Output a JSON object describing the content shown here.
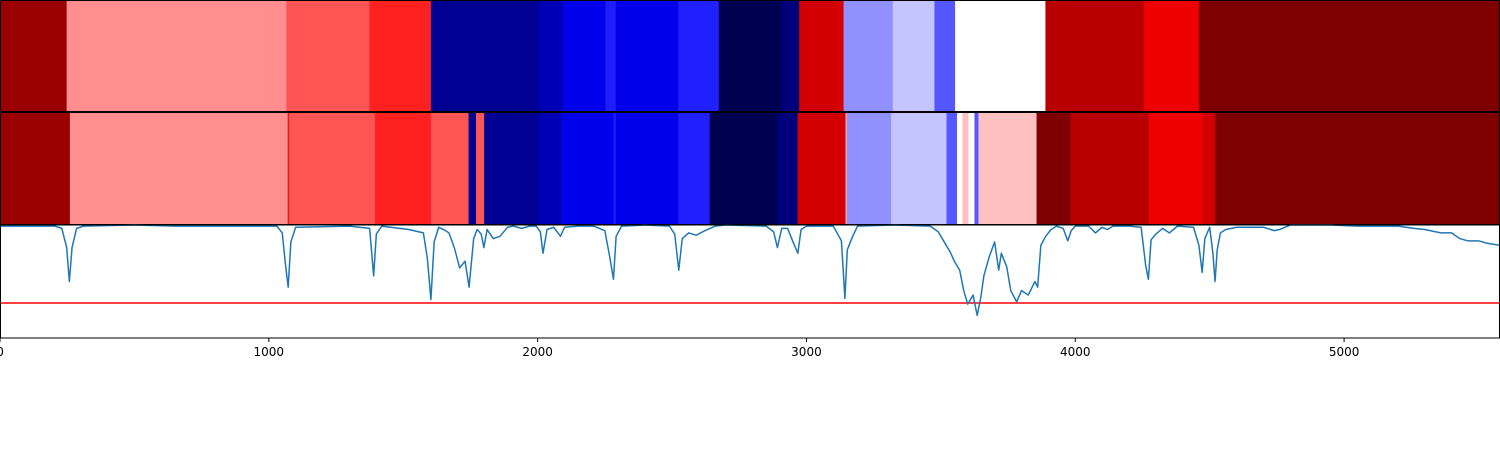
{
  "chart_data": [
    {
      "type": "heatmap",
      "name": "segmentation-a",
      "xlim": [
        0,
        5580
      ],
      "segments": [
        {
          "start": 0,
          "end": 248,
          "color": "#9b0000"
        },
        {
          "start": 248,
          "end": 1065,
          "color": "#ff8e8e"
        },
        {
          "start": 1065,
          "end": 1374,
          "color": "#ff5555"
        },
        {
          "start": 1374,
          "end": 1603,
          "color": "#ff2020"
        },
        {
          "start": 1603,
          "end": 2003,
          "color": "#000092"
        },
        {
          "start": 2003,
          "end": 2093,
          "color": "#0000b5"
        },
        {
          "start": 2093,
          "end": 2252,
          "color": "#0000ea"
        },
        {
          "start": 2252,
          "end": 2290,
          "color": "#1e1eff"
        },
        {
          "start": 2290,
          "end": 2523,
          "color": "#0000ea"
        },
        {
          "start": 2523,
          "end": 2674,
          "color": "#2020ff"
        },
        {
          "start": 2674,
          "end": 2905,
          "color": "#000050"
        },
        {
          "start": 2905,
          "end": 2973,
          "color": "#00007a"
        },
        {
          "start": 2973,
          "end": 3138,
          "color": "#d20000"
        },
        {
          "start": 3138,
          "end": 3321,
          "color": "#9090ff"
        },
        {
          "start": 3321,
          "end": 3476,
          "color": "#c4c4ff"
        },
        {
          "start": 3476,
          "end": 3553,
          "color": "#5757ff"
        },
        {
          "start": 3553,
          "end": 3889,
          "color": "#ffffff"
        },
        {
          "start": 3889,
          "end": 4255,
          "color": "#b80000"
        },
        {
          "start": 4255,
          "end": 4460,
          "color": "#ee0000"
        },
        {
          "start": 4460,
          "end": 5580,
          "color": "#7e0000"
        }
      ]
    },
    {
      "type": "heatmap",
      "name": "segmentation-b",
      "xlim": [
        0,
        5580
      ],
      "segments": [
        {
          "start": 0,
          "end": 260,
          "color": "#9b0000"
        },
        {
          "start": 260,
          "end": 1070,
          "color": "#ff8e8e"
        },
        {
          "start": 1070,
          "end": 1076,
          "color": "#e82020"
        },
        {
          "start": 1076,
          "end": 1395,
          "color": "#ff5555"
        },
        {
          "start": 1395,
          "end": 1603,
          "color": "#ff2020"
        },
        {
          "start": 1603,
          "end": 1743,
          "color": "#ff5555"
        },
        {
          "start": 1743,
          "end": 1771,
          "color": "#00008e"
        },
        {
          "start": 1771,
          "end": 1801,
          "color": "#ff5555"
        },
        {
          "start": 1801,
          "end": 2003,
          "color": "#000092"
        },
        {
          "start": 2003,
          "end": 2089,
          "color": "#0000b5"
        },
        {
          "start": 2089,
          "end": 2282,
          "color": "#0000ea"
        },
        {
          "start": 2282,
          "end": 2290,
          "color": "#1e1eff"
        },
        {
          "start": 2290,
          "end": 2523,
          "color": "#0000ea"
        },
        {
          "start": 2523,
          "end": 2640,
          "color": "#2020ff"
        },
        {
          "start": 2640,
          "end": 2890,
          "color": "#000050"
        },
        {
          "start": 2890,
          "end": 2967,
          "color": "#00007a"
        },
        {
          "start": 2967,
          "end": 3145,
          "color": "#d20000"
        },
        {
          "start": 3145,
          "end": 3151,
          "color": "#e8a0a0"
        },
        {
          "start": 3151,
          "end": 3315,
          "color": "#9090ff"
        },
        {
          "start": 3315,
          "end": 3521,
          "color": "#c4c4ff"
        },
        {
          "start": 3521,
          "end": 3560,
          "color": "#5757ff"
        },
        {
          "start": 3560,
          "end": 3580,
          "color": "#ffffff"
        },
        {
          "start": 3580,
          "end": 3603,
          "color": "#ffc0c0"
        },
        {
          "start": 3603,
          "end": 3625,
          "color": "#ffffff"
        },
        {
          "start": 3625,
          "end": 3640,
          "color": "#5757ff"
        },
        {
          "start": 3640,
          "end": 3856,
          "color": "#ffc0c0"
        },
        {
          "start": 3856,
          "end": 3982,
          "color": "#7e0000"
        },
        {
          "start": 3982,
          "end": 4273,
          "color": "#b80000"
        },
        {
          "start": 4273,
          "end": 4474,
          "color": "#ee0000"
        },
        {
          "start": 4474,
          "end": 4521,
          "color": "#d00000"
        },
        {
          "start": 4521,
          "end": 5580,
          "color": "#7e0000"
        }
      ]
    },
    {
      "type": "line",
      "name": "signal-trace",
      "xlim": [
        0,
        5580
      ],
      "ylim": [
        0,
        1
      ],
      "line_color": "#1f77b4",
      "threshold": {
        "y": 0.31,
        "color": "#ff0000"
      },
      "xticks": [
        {
          "value": 0,
          "label": "0"
        },
        {
          "value": 1000,
          "label": "1000"
        },
        {
          "value": 2000,
          "label": "2000"
        },
        {
          "value": 3000,
          "label": "3000"
        },
        {
          "value": 4000,
          "label": "4000"
        },
        {
          "value": 5000,
          "label": "5000"
        }
      ],
      "series_points": [
        [
          0,
          0.99
        ],
        [
          205,
          0.99
        ],
        [
          230,
          0.97
        ],
        [
          248,
          0.8
        ],
        [
          258,
          0.5
        ],
        [
          268,
          0.8
        ],
        [
          285,
          0.97
        ],
        [
          310,
          0.99
        ],
        [
          500,
          1.0
        ],
        [
          650,
          0.99
        ],
        [
          900,
          0.99
        ],
        [
          1030,
          0.99
        ],
        [
          1050,
          0.93
        ],
        [
          1062,
          0.65
        ],
        [
          1072,
          0.45
        ],
        [
          1082,
          0.85
        ],
        [
          1100,
          0.98
        ],
        [
          1300,
          0.99
        ],
        [
          1375,
          0.97
        ],
        [
          1390,
          0.55
        ],
        [
          1400,
          0.92
        ],
        [
          1420,
          0.99
        ],
        [
          1520,
          0.96
        ],
        [
          1575,
          0.93
        ],
        [
          1590,
          0.7
        ],
        [
          1603,
          0.34
        ],
        [
          1615,
          0.85
        ],
        [
          1632,
          0.98
        ],
        [
          1650,
          0.96
        ],
        [
          1670,
          0.93
        ],
        [
          1690,
          0.8
        ],
        [
          1710,
          0.62
        ],
        [
          1730,
          0.68
        ],
        [
          1745,
          0.45
        ],
        [
          1762,
          0.88
        ],
        [
          1775,
          0.96
        ],
        [
          1790,
          0.92
        ],
        [
          1800,
          0.8
        ],
        [
          1812,
          0.96
        ],
        [
          1835,
          0.88
        ],
        [
          1860,
          0.9
        ],
        [
          1888,
          0.98
        ],
        [
          1910,
          0.99
        ],
        [
          1940,
          0.97
        ],
        [
          1970,
          0.99
        ],
        [
          1995,
          0.99
        ],
        [
          2010,
          0.94
        ],
        [
          2020,
          0.75
        ],
        [
          2035,
          0.96
        ],
        [
          2060,
          0.98
        ],
        [
          2085,
          0.9
        ],
        [
          2100,
          0.98
        ],
        [
          2150,
          0.99
        ],
        [
          2210,
          0.99
        ],
        [
          2250,
          0.95
        ],
        [
          2268,
          0.72
        ],
        [
          2282,
          0.52
        ],
        [
          2292,
          0.9
        ],
        [
          2312,
          0.99
        ],
        [
          2400,
          1.0
        ],
        [
          2490,
          0.99
        ],
        [
          2510,
          0.92
        ],
        [
          2525,
          0.6
        ],
        [
          2538,
          0.88
        ],
        [
          2562,
          0.93
        ],
        [
          2590,
          0.91
        ],
        [
          2622,
          0.95
        ],
        [
          2660,
          0.99
        ],
        [
          2700,
          1.0
        ],
        [
          2850,
          0.99
        ],
        [
          2878,
          0.94
        ],
        [
          2892,
          0.8
        ],
        [
          2908,
          0.97
        ],
        [
          2930,
          0.97
        ],
        [
          2950,
          0.85
        ],
        [
          2968,
          0.75
        ],
        [
          2980,
          0.96
        ],
        [
          3000,
          0.99
        ],
        [
          3100,
          0.99
        ],
        [
          3130,
          0.86
        ],
        [
          3143,
          0.35
        ],
        [
          3152,
          0.78
        ],
        [
          3165,
          0.86
        ],
        [
          3176,
          0.92
        ],
        [
          3190,
          0.99
        ],
        [
          3330,
          1.0
        ],
        [
          3460,
          0.99
        ],
        [
          3490,
          0.94
        ],
        [
          3510,
          0.86
        ],
        [
          3535,
          0.76
        ],
        [
          3550,
          0.68
        ],
        [
          3570,
          0.6
        ],
        [
          3585,
          0.42
        ],
        [
          3600,
          0.3
        ],
        [
          3620,
          0.38
        ],
        [
          3635,
          0.2
        ],
        [
          3648,
          0.35
        ],
        [
          3660,
          0.55
        ],
        [
          3680,
          0.72
        ],
        [
          3700,
          0.85
        ],
        [
          3715,
          0.6
        ],
        [
          3725,
          0.75
        ],
        [
          3745,
          0.63
        ],
        [
          3760,
          0.42
        ],
        [
          3782,
          0.32
        ],
        [
          3800,
          0.42
        ],
        [
          3825,
          0.38
        ],
        [
          3850,
          0.5
        ],
        [
          3860,
          0.45
        ],
        [
          3872,
          0.82
        ],
        [
          3890,
          0.9
        ],
        [
          3910,
          0.96
        ],
        [
          3930,
          0.99
        ],
        [
          3955,
          0.97
        ],
        [
          3972,
          0.86
        ],
        [
          3985,
          0.95
        ],
        [
          4000,
          0.99
        ],
        [
          4050,
          0.99
        ],
        [
          4075,
          0.93
        ],
        [
          4100,
          0.98
        ],
        [
          4120,
          0.96
        ],
        [
          4140,
          0.99
        ],
        [
          4200,
          0.99
        ],
        [
          4245,
          0.98
        ],
        [
          4262,
          0.64
        ],
        [
          4272,
          0.52
        ],
        [
          4282,
          0.87
        ],
        [
          4300,
          0.92
        ],
        [
          4325,
          0.97
        ],
        [
          4350,
          0.93
        ],
        [
          4380,
          0.99
        ],
        [
          4440,
          0.98
        ],
        [
          4460,
          0.82
        ],
        [
          4472,
          0.58
        ],
        [
          4482,
          0.88
        ],
        [
          4500,
          0.98
        ],
        [
          4512,
          0.75
        ],
        [
          4520,
          0.5
        ],
        [
          4528,
          0.78
        ],
        [
          4540,
          0.93
        ],
        [
          4560,
          0.96
        ],
        [
          4600,
          0.98
        ],
        [
          4700,
          0.98
        ],
        [
          4740,
          0.95
        ],
        [
          4760,
          0.96
        ],
        [
          4800,
          1.0
        ],
        [
          4950,
          1.0
        ],
        [
          5050,
          0.99
        ],
        [
          5200,
          0.99
        ],
        [
          5260,
          0.97
        ],
        [
          5300,
          0.96
        ],
        [
          5360,
          0.93
        ],
        [
          5400,
          0.93
        ],
        [
          5430,
          0.88
        ],
        [
          5460,
          0.86
        ],
        [
          5500,
          0.86
        ],
        [
          5530,
          0.84
        ],
        [
          5580,
          0.82
        ]
      ]
    }
  ]
}
